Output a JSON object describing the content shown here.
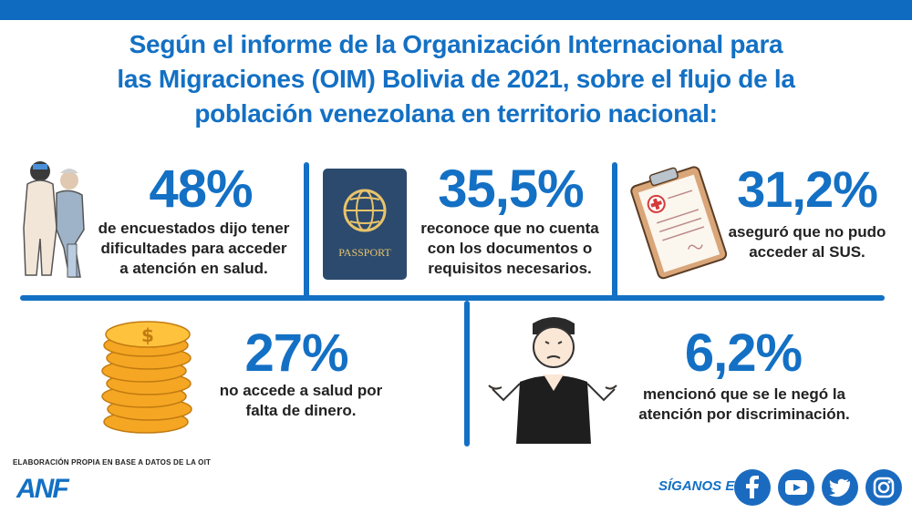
{
  "header": {
    "title_lines": [
      "Según el informe de la Organización Internacional para",
      "las Migraciones (OIM) Bolivia de 2021, sobre el flujo de la",
      "población venezolana en territorio nacional:"
    ]
  },
  "stats": [
    {
      "value": "48%",
      "lines": [
        "de encuestados dijo tener",
        "dificultades para acceder",
        "a atención en salud."
      ],
      "icon": "healthcare-assistance-icon"
    },
    {
      "value": "35,5%",
      "lines": [
        "reconoce que no cuenta",
        "con los documentos o",
        "requisitos necesarios."
      ],
      "icon": "passport-icon",
      "icon_text": "PASSPORT"
    },
    {
      "value": "31,2%",
      "lines": [
        "aseguró que no pudo",
        "acceder al SUS."
      ],
      "icon": "medical-clipboard-icon"
    },
    {
      "value": "27%",
      "lines": [
        "no accede a salud por",
        "falta de dinero."
      ],
      "icon": "coins-icon"
    },
    {
      "value": "6,2%",
      "lines": [
        "mencionó que se le negó la",
        "atención por discriminación."
      ],
      "icon": "shrugging-person-icon"
    }
  ],
  "footer": {
    "source": "ELABORACIÓN PROPIA EN BASE A DATOS DE LA OIT",
    "logo": "ANF",
    "follow_label": "SÍGANOS EN:",
    "social_icons": [
      "facebook-icon",
      "youtube-icon",
      "twitter-icon",
      "instagram-icon"
    ]
  },
  "colors": {
    "accent": "#1370c4",
    "text": "#222222",
    "passport": "#2c4a6e",
    "coins": "#f5a623"
  }
}
